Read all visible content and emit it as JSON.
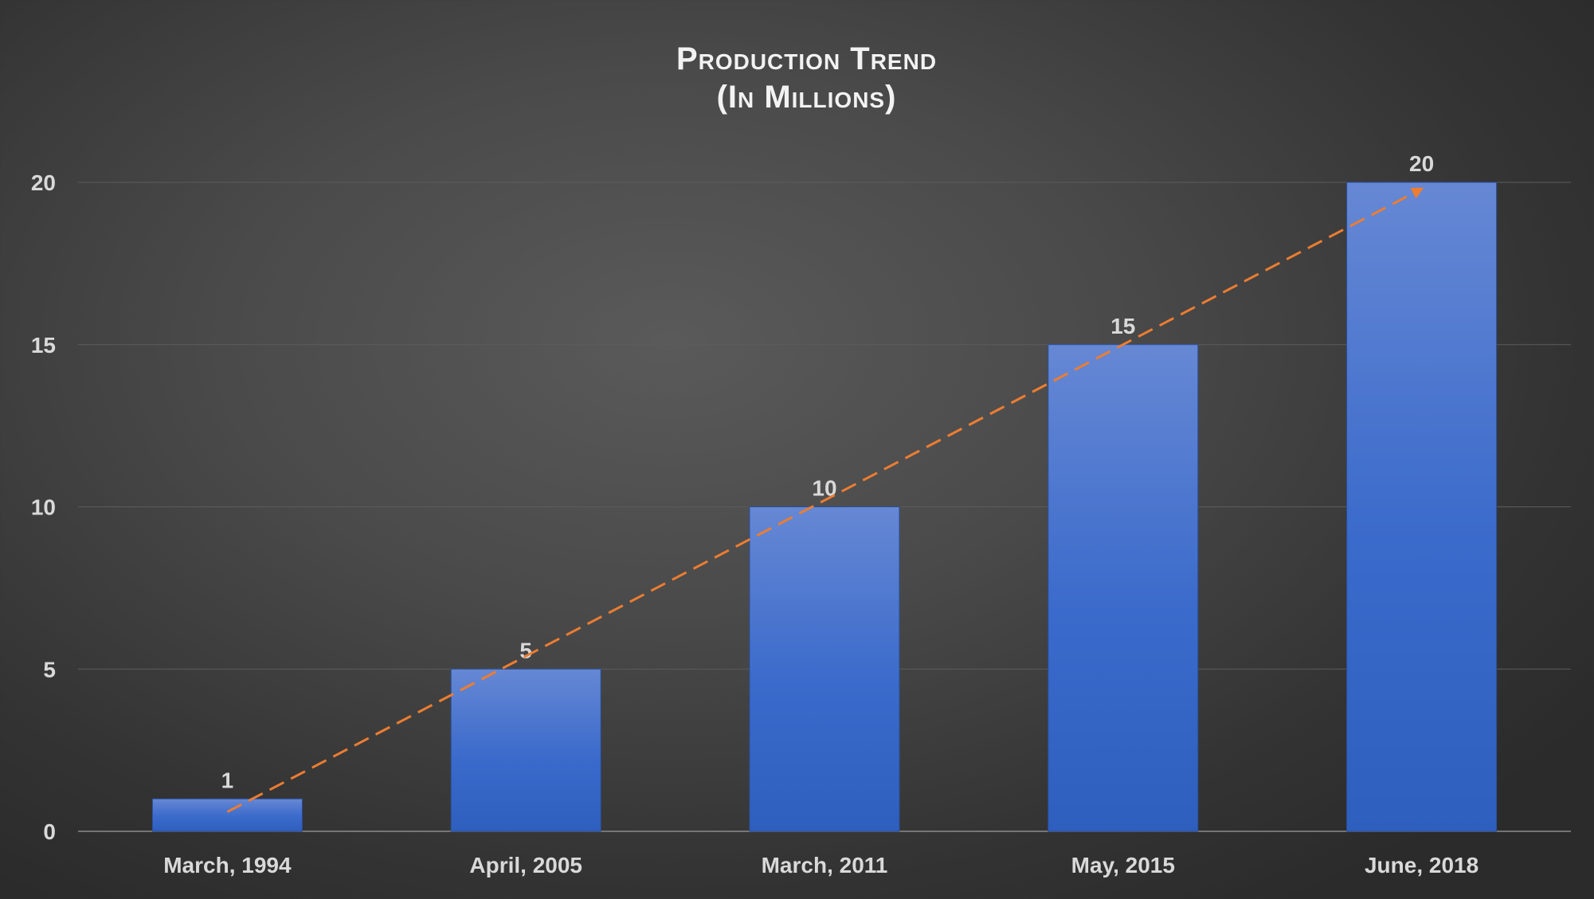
{
  "chart_data": {
    "type": "bar",
    "title": "Production Trend",
    "subtitle": "(In Millions)",
    "categories": [
      "March, 1994",
      "April, 2005",
      "March, 2011",
      "May, 2015",
      "June, 2018"
    ],
    "values": [
      1,
      5,
      10,
      15,
      20
    ],
    "data_labels": [
      "1",
      "5",
      "10",
      "15",
      "20"
    ],
    "ylim": [
      0,
      20
    ],
    "yticks": [
      0,
      5,
      10,
      15,
      20
    ],
    "grid": true,
    "legend": "none",
    "trend_arrow": {
      "style": "dashed",
      "from_value": 0.6,
      "to_value": 19.8
    },
    "colors": {
      "bar_top": "#6688d4",
      "bar_bottom": "#2e5fbe",
      "trend": "#ed7d31",
      "grid": "#5c5c5c",
      "text": "#d9d9d9"
    }
  }
}
